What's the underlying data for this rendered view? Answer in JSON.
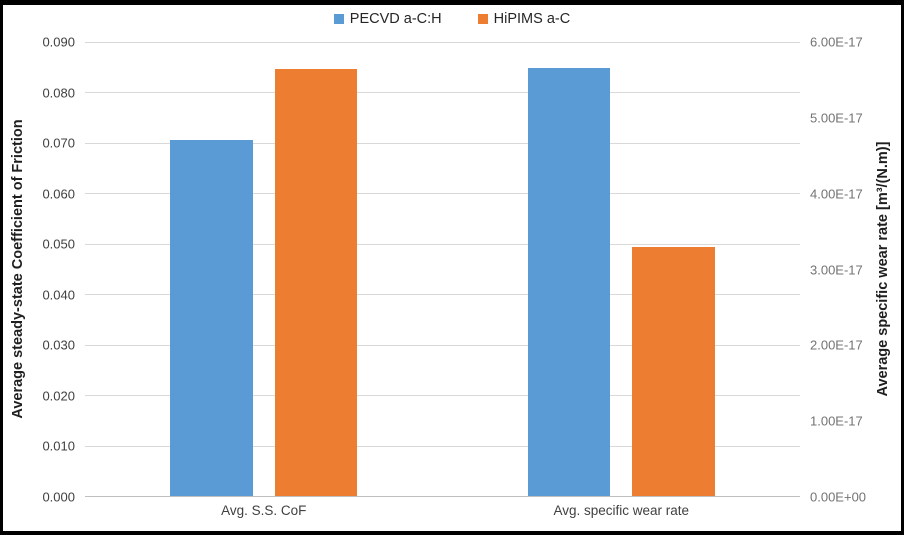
{
  "chart_data": {
    "type": "bar",
    "title": "",
    "categories": [
      "Avg. S.S. CoF",
      "Avg. specific wear rate"
    ],
    "category_axis_assignment": [
      "left",
      "right"
    ],
    "series": [
      {
        "name": "PECVD a-C:H",
        "color": "#5B9BD5",
        "values": [
          0.0705,
          5.65e-17
        ]
      },
      {
        "name": "HiPIMS a-C",
        "color": "#ED7D31",
        "values": [
          0.0847,
          3.29e-17
        ]
      }
    ],
    "left_axis": {
      "label": "Average steady-state Coefficient of Friction",
      "min": 0,
      "max": 0.09,
      "step": 0.01,
      "tick_labels": [
        "0.090",
        "0.080",
        "0.070",
        "0.060",
        "0.050",
        "0.040",
        "0.030",
        "0.020",
        "0.010",
        "0.000"
      ]
    },
    "right_axis": {
      "label": "Average specific wear rate [m³/(N.m)]",
      "min": 0,
      "max": 6e-17,
      "step": 1e-17,
      "tick_labels": [
        "6.00E-17",
        "5.00E-17",
        "4.00E-17",
        "3.00E-17",
        "2.00E-17",
        "1.00E-17",
        "0.00E+00"
      ]
    },
    "grid": true,
    "legend_position": "top",
    "colors": {
      "gridline": "#D9D9D9",
      "axis_line": "#BFBFBF",
      "left_tick_text": "#404040",
      "right_tick_text": "#737373",
      "title_text": "#1F1F1F",
      "frame": "#000000",
      "background": "#FFFFFF"
    }
  }
}
